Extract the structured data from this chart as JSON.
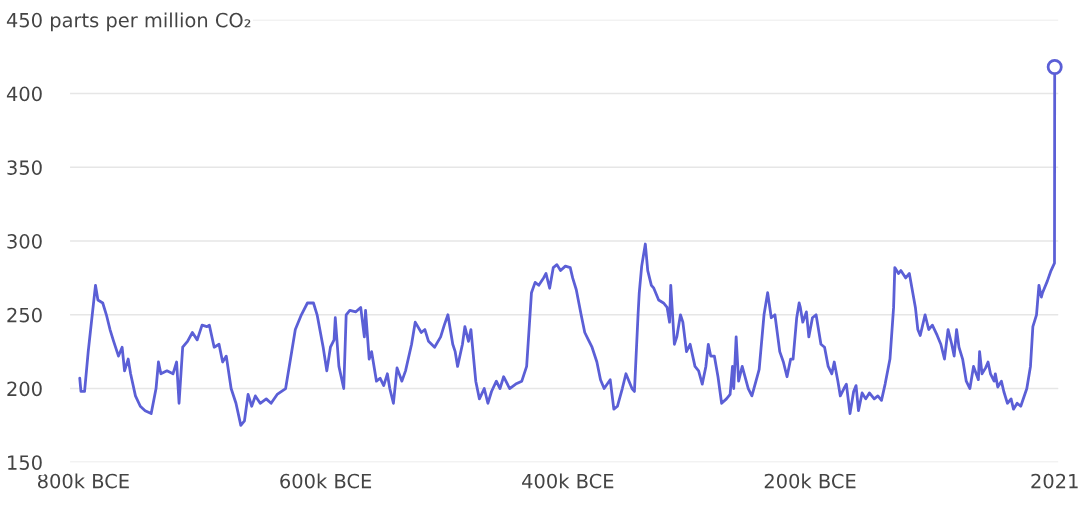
{
  "chart_data": {
    "type": "line",
    "xlim": [
      -811000,
      5000
    ],
    "xticks": [
      {
        "value": -800000,
        "label": "800k BCE"
      },
      {
        "value": -600000,
        "label": "600k BCE"
      },
      {
        "value": -400000,
        "label": "400k BCE"
      },
      {
        "value": -200000,
        "label": "200k BCE"
      },
      2021
    ],
    "ylim": [
      150,
      450
    ],
    "yticks": [
      150,
      200,
      250,
      300,
      350,
      400,
      {
        "value": 450,
        "label": "450 parts per million CO₂"
      }
    ],
    "grid": "y",
    "series": [
      {
        "color": "#5b5fd6",
        "marker": "none",
        "x": [
          -803000,
          -802000,
          -799000,
          -796000,
          -792000,
          -790000,
          -788000,
          -784000,
          -781000,
          -778000,
          -775000,
          -771000,
          -768000,
          -766000,
          -763000,
          -761000,
          -757000,
          -753000,
          -749000,
          -744000,
          -740000,
          -738000,
          -736000,
          -731000,
          -726000,
          -723000,
          -721000,
          -718000,
          -714000,
          -710000,
          -706000,
          -702000,
          -698000,
          -696000,
          -692000,
          -688000,
          -685000,
          -682000,
          -678000,
          -674000,
          -670000,
          -667000,
          -664000,
          -661000,
          -658000,
          -654000,
          -649000,
          -645000,
          -640000,
          -633000,
          -628000,
          -625000,
          -620000,
          -615000,
          -610000,
          -607000,
          -602000,
          -599000,
          -596000,
          -593000,
          -592000,
          -589000,
          -585000,
          -583000,
          -580000,
          -575000,
          -571000,
          -568000,
          -567000,
          -564000,
          -562000,
          -558000,
          -555000,
          -552000,
          -549000,
          -547000,
          -544000,
          -541000,
          -537000,
          -534000,
          -529000,
          -526000,
          -521000,
          -518000,
          -515000,
          -510000,
          -505000,
          -502000,
          -499000,
          -495000,
          -493000,
          -491000,
          -487000,
          -485000,
          -482000,
          -480000,
          -476000,
          -473000,
          -469000,
          -466000,
          -463000,
          -459000,
          -456000,
          -453000,
          -448000,
          -443000,
          -438000,
          -434000,
          -432000,
          -430000,
          -427000,
          -424000,
          -420000,
          -418000,
          -415000,
          -412000,
          -409000,
          -406000,
          -402000,
          -398000,
          -396000,
          -393000,
          -389000,
          -386000,
          -383000,
          -380000,
          -376000,
          -373000,
          -370000,
          -365000,
          -362000,
          -359000,
          -355000,
          -352000,
          -347000,
          -345000,
          -342000,
          -341000,
          -339000,
          -336000,
          -334000,
          -331000,
          -329000,
          -325000,
          -321000,
          -318000,
          -316000,
          -315000,
          -312000,
          -310000,
          -307000,
          -305000,
          -302000,
          -299000,
          -295000,
          -292000,
          -289000,
          -286000,
          -284000,
          -282000,
          -279000,
          -276000,
          -273000,
          -269000,
          -266000,
          -264000,
          -263000,
          -261000,
          -259000,
          -256000,
          -251000,
          -248000,
          -243000,
          -242000,
          -238000,
          -235000,
          -232000,
          -229000,
          -225000,
          -222000,
          -219000,
          -216000,
          -214000,
          -211000,
          -209000,
          -208000,
          -206000,
          -203000,
          -201000,
          -198000,
          -195000,
          -191000,
          -188000,
          -185000,
          -182000,
          -180000,
          -177000,
          -175000,
          -172000,
          -170000,
          -167000,
          -164000,
          -162000,
          -160000,
          -157000,
          -154000,
          -151000,
          -147000,
          -144000,
          -141000,
          -138000,
          -134000,
          -131000,
          -130000,
          -127000,
          -125000,
          -121000,
          -118000,
          -113000,
          -111000,
          -109000,
          -105000,
          -102000,
          -99000,
          -95000,
          -92000,
          -89000,
          -86000,
          -83000,
          -81000,
          -79000,
          -77000,
          -74000,
          -71000,
          -68000,
          -65000,
          -61000,
          -60000,
          -58000,
          -55000,
          -53000,
          -51000,
          -48000,
          -47000,
          -45000,
          -42000,
          -40000,
          -37000,
          -34000,
          -32000,
          -29000,
          -26000,
          -21000,
          -18000,
          -16000,
          -13000,
          -11000,
          -9000,
          -8000,
          -4000,
          -1000,
          1850,
          2021
        ],
        "values": [
          207,
          198,
          198,
          225,
          255,
          270,
          260,
          258,
          250,
          240,
          232,
          222,
          228,
          212,
          220,
          210,
          195,
          188,
          185,
          183,
          200,
          218,
          210,
          212,
          210,
          218,
          190,
          228,
          232,
          238,
          233,
          243,
          242,
          243,
          228,
          230,
          218,
          222,
          200,
          190,
          175,
          178,
          196,
          188,
          195,
          190,
          193,
          190,
          196,
          200,
          225,
          240,
          250,
          258,
          258,
          250,
          228,
          212,
          228,
          233,
          248,
          215,
          200,
          250,
          253,
          252,
          255,
          235,
          253,
          220,
          225,
          205,
          207,
          202,
          210,
          200,
          190,
          214,
          205,
          212,
          230,
          245,
          238,
          240,
          232,
          228,
          235,
          243,
          250,
          230,
          225,
          215,
          230,
          242,
          232,
          240,
          205,
          193,
          200,
          190,
          198,
          205,
          200,
          208,
          200,
          203,
          205,
          215,
          240,
          265,
          272,
          270,
          275,
          278,
          268,
          282,
          284,
          280,
          283,
          282,
          275,
          267,
          250,
          238,
          233,
          228,
          218,
          206,
          200,
          206,
          186,
          188,
          200,
          210,
          200,
          198,
          250,
          265,
          283,
          298,
          280,
          270,
          268,
          260,
          258,
          255,
          245,
          270,
          230,
          235,
          250,
          245,
          225,
          230,
          215,
          212,
          203,
          215,
          230,
          222,
          222,
          208,
          190,
          193,
          196,
          215,
          200,
          235,
          205,
          215,
          200,
          195,
          210,
          213,
          250,
          265,
          248,
          250,
          225,
          218,
          208,
          220,
          220,
          248,
          258,
          255,
          245,
          252,
          235,
          248,
          250,
          230,
          228,
          215,
          210,
          218,
          205,
          195,
          200,
          203,
          183,
          198,
          202,
          185,
          197,
          193,
          197,
          193,
          195,
          192,
          203,
          220,
          255,
          282,
          278,
          280,
          275,
          278,
          255,
          240,
          236,
          250,
          240,
          243,
          236,
          230,
          220,
          240,
          230,
          222,
          240,
          228,
          220,
          205,
          200,
          215,
          206,
          225,
          210,
          214,
          218,
          210,
          205,
          210,
          201,
          205,
          198,
          190,
          193,
          186,
          190,
          188,
          200,
          215,
          242,
          250,
          270,
          262,
          265,
          273,
          280,
          285,
          418
        ]
      },
      {
        "type": "scatter",
        "color": "#5b5fd6",
        "marker": "circle",
        "x": [
          2021
        ],
        "values": [
          418
        ]
      }
    ]
  }
}
